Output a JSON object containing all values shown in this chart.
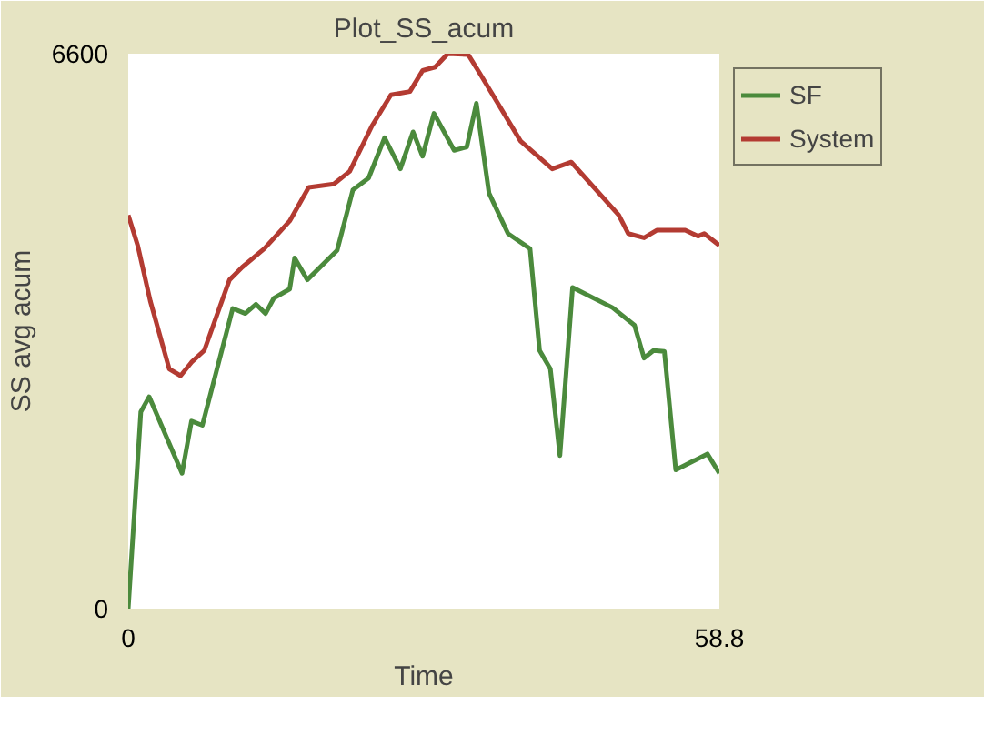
{
  "chart_data": {
    "type": "line",
    "title": "Plot_SS_acum",
    "xlabel": "Time",
    "ylabel": "SS avg acum",
    "xlim": [
      0,
      58.8
    ],
    "ylim": [
      0,
      6600
    ],
    "xticks": [
      0,
      58.8
    ],
    "yticks": [
      0,
      6600
    ],
    "legend": "top right",
    "marker": "none",
    "line_style": "solid",
    "series": [
      {
        "name": "SF",
        "color": "#4b8a3c",
        "x": [
          0,
          1.25,
          2.08,
          5.35,
          6.29,
          7.37,
          10.39,
          11.64,
          12.71,
          13.66,
          14.47,
          16.06,
          16.55,
          17.81,
          20.78,
          22.35,
          23.91,
          25.5,
          27.07,
          28.33,
          29.28,
          30.41,
          32.42,
          33.68,
          34.63,
          35.89,
          37.78,
          39.97,
          40.92,
          41.99,
          42.94,
          44.2,
          48.17,
          50.36,
          51.31,
          52.25,
          53.33,
          54.46,
          57.61,
          58.8
        ],
        "values": [
          0,
          2340,
          2520,
          1610,
          2230,
          2180,
          3570,
          3510,
          3620,
          3510,
          3690,
          3800,
          4170,
          3910,
          4260,
          4980,
          5120,
          5600,
          5230,
          5670,
          5380,
          5890,
          5450,
          5490,
          6010,
          4940,
          4460,
          4280,
          3070,
          2850,
          1820,
          3820,
          3580,
          3370,
          2980,
          3070,
          3060,
          1650,
          1840,
          1610
        ]
      },
      {
        "name": "System",
        "color": "#b33b32",
        "x": [
          0,
          0.94,
          2.19,
          4.08,
          5.21,
          6.29,
          7.56,
          10.07,
          11.33,
          13.53,
          16.06,
          17.95,
          20.46,
          22.03,
          24.24,
          26.13,
          28.02,
          29.28,
          30.53,
          31.79,
          33.81,
          34.95,
          39.03,
          42.18,
          44.07,
          48.79,
          49.74,
          51.31,
          52.57,
          55.4,
          56.67,
          57.29,
          58.8
        ],
        "values": [
          4680,
          4320,
          3660,
          2850,
          2770,
          2930,
          3070,
          3910,
          4060,
          4280,
          4610,
          5010,
          5050,
          5200,
          5740,
          6110,
          6150,
          6400,
          6440,
          6600,
          6590,
          6370,
          5560,
          5230,
          5310,
          4680,
          4460,
          4410,
          4500,
          4500,
          4430,
          4460,
          4320
        ]
      }
    ]
  }
}
